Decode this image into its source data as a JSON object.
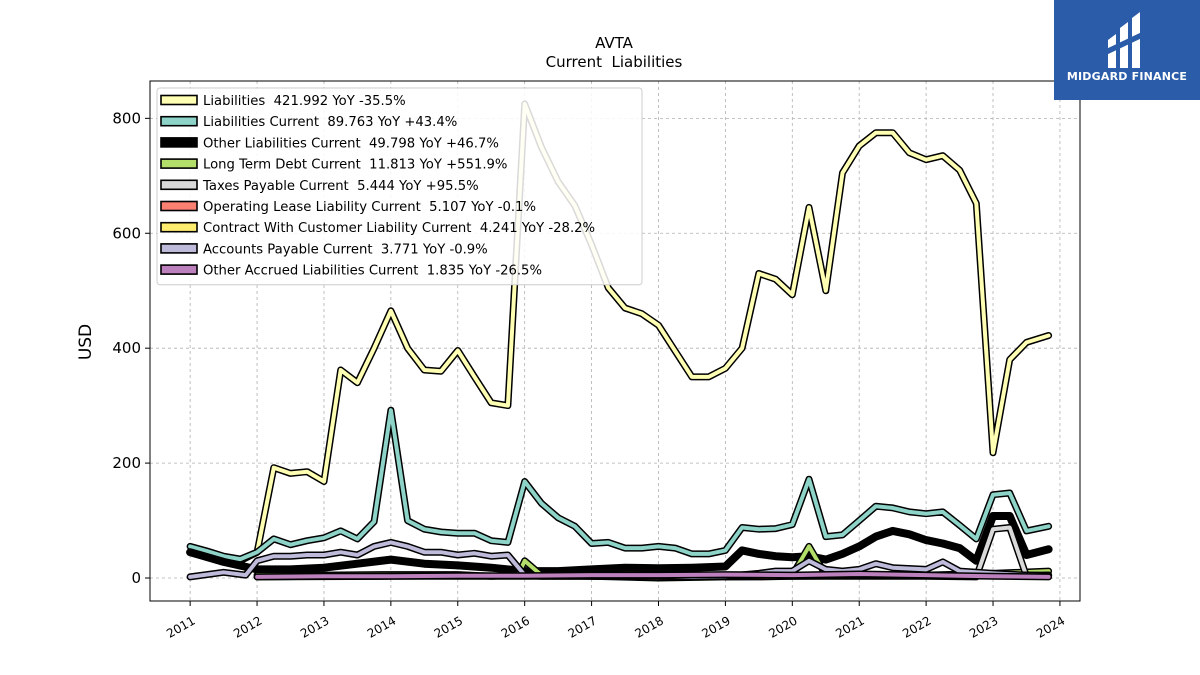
{
  "chart_data": {
    "type": "line",
    "title": "AVTA",
    "subtitle": "Current  Liabilities",
    "xlabel": "",
    "ylabel": "USD",
    "xlim": [
      2010.4,
      2024.3
    ],
    "ylim": [
      -40,
      865
    ],
    "yticks": [
      0,
      200,
      400,
      600,
      800
    ],
    "xticks": [
      2011,
      2012,
      2013,
      2014,
      2015,
      2016,
      2017,
      2018,
      2019,
      2020,
      2021,
      2022,
      2023,
      2024
    ],
    "grid": true,
    "legend_position": "top-left",
    "series": [
      {
        "name": "Liabilities  421.992 YoY -35.5%",
        "color": "#ffffb3",
        "width": 4,
        "points": [
          [
            2011.0,
            45
          ],
          [
            2011.75,
            30
          ],
          [
            2012.0,
            45
          ],
          [
            2012.25,
            192
          ],
          [
            2012.5,
            182
          ],
          [
            2012.75,
            185
          ],
          [
            2013.0,
            168
          ],
          [
            2013.25,
            362
          ],
          [
            2013.5,
            340
          ],
          [
            2013.75,
            400
          ],
          [
            2014.0,
            465
          ],
          [
            2014.25,
            400
          ],
          [
            2014.5,
            362
          ],
          [
            2014.75,
            360
          ],
          [
            2015.0,
            396
          ],
          [
            2015.25,
            350
          ],
          [
            2015.5,
            305
          ],
          [
            2015.75,
            300
          ],
          [
            2016.0,
            825
          ],
          [
            2016.25,
            750
          ],
          [
            2016.5,
            690
          ],
          [
            2016.75,
            648
          ],
          [
            2017.0,
            580
          ],
          [
            2017.25,
            505
          ],
          [
            2017.5,
            470
          ],
          [
            2017.75,
            460
          ],
          [
            2018.0,
            440
          ],
          [
            2018.25,
            395
          ],
          [
            2018.5,
            350
          ],
          [
            2018.75,
            350
          ],
          [
            2019.0,
            365
          ],
          [
            2019.25,
            400
          ],
          [
            2019.5,
            530
          ],
          [
            2019.75,
            520
          ],
          [
            2020.0,
            493
          ],
          [
            2020.25,
            645
          ],
          [
            2020.5,
            500
          ],
          [
            2020.75,
            705
          ],
          [
            2021.0,
            752
          ],
          [
            2021.25,
            775
          ],
          [
            2021.5,
            775
          ],
          [
            2021.75,
            740
          ],
          [
            2022.0,
            728
          ],
          [
            2022.25,
            735
          ],
          [
            2022.5,
            710
          ],
          [
            2022.75,
            652
          ],
          [
            2023.0,
            218
          ],
          [
            2023.25,
            380
          ],
          [
            2023.5,
            410
          ],
          [
            2023.83,
            422
          ]
        ]
      },
      {
        "name": "Liabilities Current  89.763 YoY +43.4%",
        "color": "#8dd3c7",
        "width": 4,
        "points": [
          [
            2011.0,
            55
          ],
          [
            2011.25,
            47
          ],
          [
            2011.5,
            38
          ],
          [
            2011.75,
            33
          ],
          [
            2012.0,
            45
          ],
          [
            2012.25,
            68
          ],
          [
            2012.5,
            58
          ],
          [
            2012.75,
            65
          ],
          [
            2013.0,
            70
          ],
          [
            2013.25,
            82
          ],
          [
            2013.5,
            68
          ],
          [
            2013.75,
            98
          ],
          [
            2014.0,
            292
          ],
          [
            2014.25,
            100
          ],
          [
            2014.5,
            85
          ],
          [
            2014.75,
            80
          ],
          [
            2015.0,
            78
          ],
          [
            2015.25,
            78
          ],
          [
            2015.5,
            65
          ],
          [
            2015.75,
            62
          ],
          [
            2016.0,
            168
          ],
          [
            2016.25,
            130
          ],
          [
            2016.5,
            105
          ],
          [
            2016.75,
            90
          ],
          [
            2017.0,
            60
          ],
          [
            2017.25,
            62
          ],
          [
            2017.5,
            52
          ],
          [
            2017.75,
            52
          ],
          [
            2018.0,
            55
          ],
          [
            2018.25,
            52
          ],
          [
            2018.5,
            42
          ],
          [
            2018.75,
            42
          ],
          [
            2019.0,
            48
          ],
          [
            2019.25,
            88
          ],
          [
            2019.5,
            85
          ],
          [
            2019.75,
            86
          ],
          [
            2020.0,
            93
          ],
          [
            2020.25,
            172
          ],
          [
            2020.5,
            72
          ],
          [
            2020.75,
            75
          ],
          [
            2021.0,
            100
          ],
          [
            2021.25,
            125
          ],
          [
            2021.5,
            122
          ],
          [
            2021.75,
            115
          ],
          [
            2022.0,
            112
          ],
          [
            2022.25,
            115
          ],
          [
            2022.5,
            92
          ],
          [
            2022.75,
            68
          ],
          [
            2023.0,
            145
          ],
          [
            2023.25,
            148
          ],
          [
            2023.5,
            82
          ],
          [
            2023.83,
            90
          ]
        ]
      },
      {
        "name": "Other Liabilities Current  49.798 YoY +46.7%",
        "color": "#000000",
        "width": 8,
        "points": [
          [
            2011.0,
            45
          ],
          [
            2011.5,
            28
          ],
          [
            2012.0,
            15
          ],
          [
            2012.5,
            15
          ],
          [
            2013.0,
            18
          ],
          [
            2013.5,
            25
          ],
          [
            2014.0,
            32
          ],
          [
            2014.5,
            25
          ],
          [
            2015.0,
            22
          ],
          [
            2015.5,
            18
          ],
          [
            2016.0,
            12
          ],
          [
            2016.5,
            12
          ],
          [
            2017.0,
            15
          ],
          [
            2017.5,
            18
          ],
          [
            2018.0,
            17
          ],
          [
            2018.5,
            18
          ],
          [
            2019.0,
            20
          ],
          [
            2019.25,
            48
          ],
          [
            2019.5,
            42
          ],
          [
            2019.75,
            38
          ],
          [
            2020.0,
            36
          ],
          [
            2020.25,
            38
          ],
          [
            2020.5,
            32
          ],
          [
            2020.75,
            42
          ],
          [
            2021.0,
            55
          ],
          [
            2021.25,
            72
          ],
          [
            2021.5,
            82
          ],
          [
            2021.75,
            76
          ],
          [
            2022.0,
            66
          ],
          [
            2022.25,
            60
          ],
          [
            2022.5,
            52
          ],
          [
            2022.75,
            30
          ],
          [
            2023.0,
            108
          ],
          [
            2023.25,
            108
          ],
          [
            2023.5,
            40
          ],
          [
            2023.83,
            50
          ]
        ]
      },
      {
        "name": "Long Term Debt Current  11.813 YoY +551.9%",
        "color": "#b3de69",
        "width": 4,
        "points": [
          [
            2012.0,
            5
          ],
          [
            2013.0,
            5
          ],
          [
            2014.0,
            6
          ],
          [
            2015.0,
            6
          ],
          [
            2015.5,
            3
          ],
          [
            2015.9,
            5
          ],
          [
            2016.0,
            30
          ],
          [
            2016.25,
            5
          ],
          [
            2017.0,
            3
          ],
          [
            2018.0,
            0
          ],
          [
            2019.0,
            2
          ],
          [
            2019.75,
            3
          ],
          [
            2020.0,
            5
          ],
          [
            2020.25,
            55
          ],
          [
            2020.5,
            5
          ],
          [
            2021.0,
            5
          ],
          [
            2022.0,
            5
          ],
          [
            2023.0,
            8
          ],
          [
            2023.83,
            12
          ]
        ]
      },
      {
        "name": "Taxes Payable Current  5.444 YoY +95.5%",
        "color": "#d9d9d9",
        "width": 4,
        "points": [
          [
            2012.0,
            2
          ],
          [
            2014.0,
            3
          ],
          [
            2016.0,
            3
          ],
          [
            2018.0,
            3
          ],
          [
            2020.0,
            3
          ],
          [
            2022.0,
            3
          ],
          [
            2022.75,
            2
          ],
          [
            2023.0,
            85
          ],
          [
            2023.25,
            88
          ],
          [
            2023.5,
            3
          ],
          [
            2023.83,
            5
          ]
        ]
      },
      {
        "name": "Operating Lease Liability Current  5.107 YoY -0.1%",
        "color": "#fb8072",
        "width": 4,
        "points": [
          [
            2019.0,
            2
          ],
          [
            2019.5,
            2
          ],
          [
            2020.0,
            3
          ],
          [
            2021.0,
            4
          ],
          [
            2022.0,
            5
          ],
          [
            2023.0,
            5
          ],
          [
            2023.83,
            5
          ]
        ]
      },
      {
        "name": "Contract With Customer Liability Current  4.241 YoY -28.2%",
        "color": "#ffed6f",
        "width": 4,
        "points": [
          [
            2018.0,
            3
          ],
          [
            2019.0,
            4
          ],
          [
            2020.0,
            5
          ],
          [
            2021.0,
            6
          ],
          [
            2022.0,
            5
          ],
          [
            2023.0,
            5
          ],
          [
            2023.83,
            4
          ]
        ]
      },
      {
        "name": "Accounts Payable Current  3.771 YoY -0.9%",
        "color": "#bebada",
        "width": 4,
        "points": [
          [
            2011.0,
            2
          ],
          [
            2011.5,
            10
          ],
          [
            2011.83,
            5
          ],
          [
            2012.0,
            30
          ],
          [
            2012.25,
            38
          ],
          [
            2012.5,
            38
          ],
          [
            2012.75,
            40
          ],
          [
            2013.0,
            40
          ],
          [
            2013.25,
            45
          ],
          [
            2013.5,
            40
          ],
          [
            2013.75,
            55
          ],
          [
            2014.0,
            62
          ],
          [
            2014.25,
            55
          ],
          [
            2014.5,
            45
          ],
          [
            2014.75,
            45
          ],
          [
            2015.0,
            40
          ],
          [
            2015.25,
            43
          ],
          [
            2015.5,
            38
          ],
          [
            2015.75,
            40
          ],
          [
            2016.0,
            5
          ],
          [
            2016.25,
            3
          ],
          [
            2016.5,
            3
          ],
          [
            2017.0,
            3
          ],
          [
            2018.0,
            3
          ],
          [
            2018.5,
            2
          ],
          [
            2019.0,
            3
          ],
          [
            2019.5,
            8
          ],
          [
            2019.75,
            12
          ],
          [
            2020.0,
            12
          ],
          [
            2020.25,
            30
          ],
          [
            2020.5,
            15
          ],
          [
            2020.75,
            12
          ],
          [
            2021.0,
            15
          ],
          [
            2021.25,
            25
          ],
          [
            2021.5,
            18
          ],
          [
            2022.0,
            15
          ],
          [
            2022.25,
            28
          ],
          [
            2022.5,
            12
          ],
          [
            2023.0,
            8
          ],
          [
            2023.5,
            5
          ],
          [
            2023.83,
            4
          ]
        ]
      },
      {
        "name": "Other Accrued Liabilities Current  1.835 YoY -26.5%",
        "color": "#bc80bd",
        "width": 4,
        "points": [
          [
            2012.0,
            2
          ],
          [
            2013.0,
            3
          ],
          [
            2014.0,
            3
          ],
          [
            2015.0,
            4
          ],
          [
            2016.0,
            4
          ],
          [
            2017.0,
            5
          ],
          [
            2018.0,
            5
          ],
          [
            2019.0,
            6
          ],
          [
            2020.0,
            5
          ],
          [
            2021.0,
            7
          ],
          [
            2022.0,
            5
          ],
          [
            2022.5,
            4
          ],
          [
            2023.0,
            3
          ],
          [
            2023.83,
            2
          ]
        ]
      }
    ]
  },
  "logo": {
    "text": "MIDGARD FINANCE",
    "background": "#2a5caa"
  }
}
